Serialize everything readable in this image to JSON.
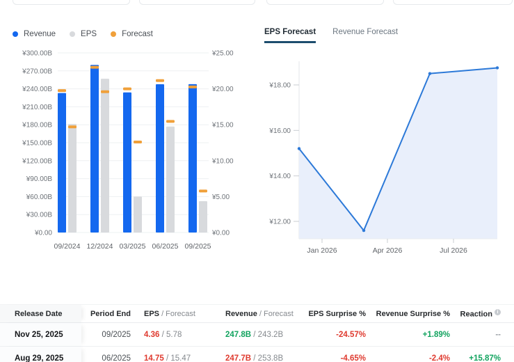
{
  "colors": {
    "revenue_bar": "#1468ef",
    "eps_bar": "#d8dadd",
    "forecast_marker": "#f0a03a",
    "line_blue": "#2c79d8",
    "area_fill": "#e9effb",
    "tab_underline": "#1d4d6e",
    "red": "#df3a2f",
    "green": "#12a35f",
    "muted": "#9aa0a6",
    "axis_label": "#6d7278",
    "gridline": "#eef0f2"
  },
  "legend": {
    "items": [
      {
        "label": "Revenue",
        "color": "#1468ef"
      },
      {
        "label": "EPS",
        "color": "#d8dadd"
      },
      {
        "label": "Forecast",
        "color": "#f0a03a"
      }
    ]
  },
  "chart_data": [
    {
      "type": "bar",
      "title": "Earnings history: revenue and EPS vs forecast",
      "categories": [
        "09/2024",
        "12/2024",
        "03/2025",
        "06/2025",
        "09/2025"
      ],
      "series": [
        {
          "name": "Revenue",
          "axis": "left",
          "style": "bar",
          "values": [
            233,
            280,
            234,
            247.7,
            247.8
          ]
        },
        {
          "name": "EPS",
          "axis": "right",
          "style": "bar",
          "values": [
            15.1,
            21.4,
            5.0,
            14.75,
            4.36
          ]
        },
        {
          "name": "Revenue Forecast",
          "axis": "left",
          "style": "marker",
          "values": [
            237,
            276,
            240,
            253.8,
            243.2
          ]
        },
        {
          "name": "EPS Forecast",
          "axis": "right",
          "style": "marker",
          "values": [
            14.7,
            19.6,
            12.6,
            15.47,
            5.78
          ]
        }
      ],
      "left_axis": {
        "min": 0,
        "max": 300,
        "tick_labels": [
          "¥300.00B",
          "¥270.00B",
          "¥240.00B",
          "¥210.00B",
          "¥180.00B",
          "¥150.00B",
          "¥120.00B",
          "¥90.00B",
          "¥60.00B",
          "¥30.00B",
          "¥0.00"
        ]
      },
      "right_axis": {
        "min": 0,
        "max": 25,
        "tick_labels": [
          "¥25.00",
          "¥20.00",
          "¥15.00",
          "¥10.00",
          "¥5.00",
          "¥0.00"
        ]
      },
      "legend_position": "top-left",
      "grid": true
    },
    {
      "type": "area",
      "title": "EPS Forecast",
      "tabs": [
        "EPS Forecast",
        "Revenue Forecast"
      ],
      "active_tab": "EPS Forecast",
      "x": [
        "12/2025",
        "03/2026",
        "06/2026",
        "09/2026"
      ],
      "values": [
        15.2,
        11.6,
        18.5,
        18.75
      ],
      "x_tick_labels": [
        "Jan 2026",
        "Apr 2026",
        "Jul 2026"
      ],
      "y_tick_labels": [
        "¥18.00",
        "¥16.00",
        "¥14.00",
        "¥12.00"
      ],
      "y_tick_values": [
        18,
        16,
        14,
        12
      ],
      "ylim": [
        11.23,
        19.05
      ],
      "grid": false,
      "legend_position": "none"
    }
  ],
  "table": {
    "headers": {
      "release_date": "Release Date",
      "period_end": "Period End",
      "eps": "EPS",
      "eps_sub": " / Forecast",
      "revenue": "Revenue",
      "revenue_sub": " / Forecast",
      "eps_surprise": "EPS Surprise %",
      "revenue_surprise": "Revenue Surprise %",
      "reaction": "Reaction"
    },
    "rows": [
      {
        "release_date": "Nov 25, 2025",
        "period_end": "09/2025",
        "eps": "4.36",
        "eps_color": "red",
        "eps_forecast": "5.78",
        "revenue": "247.8B",
        "revenue_color": "green",
        "revenue_forecast": "243.2B",
        "eps_surprise": "-24.57%",
        "eps_surprise_color": "red",
        "revenue_surprise": "+1.89%",
        "revenue_surprise_color": "green",
        "reaction": "--",
        "reaction_color": "muted"
      },
      {
        "release_date": "Aug 29, 2025",
        "period_end": "06/2025",
        "eps": "14.75",
        "eps_color": "red",
        "eps_forecast": "15.47",
        "revenue": "247.7B",
        "revenue_color": "red",
        "revenue_forecast": "253.8B",
        "eps_surprise": "-4.65%",
        "eps_surprise_color": "red",
        "revenue_surprise": "-2.4%",
        "revenue_surprise_color": "red",
        "reaction": "+15.87%",
        "reaction_color": "green"
      }
    ]
  }
}
